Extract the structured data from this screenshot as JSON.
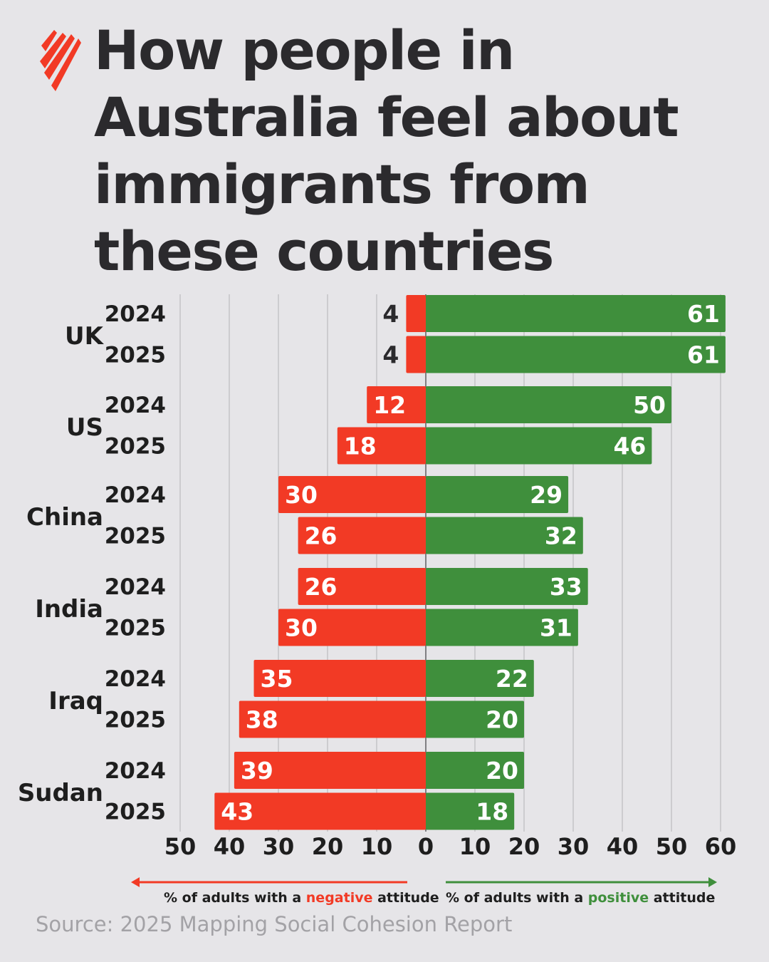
{
  "title": "How people in\nAustralia feel about\nimmigrants from\nthese countries",
  "colors": {
    "negative": "#f23a25",
    "positive": "#3f8f3c",
    "logo": "#f23a25",
    "text": "#1e1e1e"
  },
  "legend": {
    "negative": {
      "prefix": "% of adults with a ",
      "highlight": "negative",
      "suffix": " attitude"
    },
    "positive": {
      "prefix": "% of adults with a ",
      "highlight": "positive",
      "suffix": " attitude"
    }
  },
  "source": "Source: 2025 Mapping Social Cohesion Report",
  "chart_data": {
    "type": "bar",
    "orientation": "horizontal-diverging",
    "xlim": [
      -50,
      60
    ],
    "x_ticks": [
      "50",
      "40",
      "30",
      "20",
      "10",
      "0",
      "10",
      "20",
      "30",
      "40",
      "50",
      "60"
    ],
    "grid": true,
    "groups": [
      {
        "country": "UK",
        "rows": [
          {
            "year": "2024",
            "negative": 4,
            "positive": 61
          },
          {
            "year": "2025",
            "negative": 4,
            "positive": 61
          }
        ]
      },
      {
        "country": "US",
        "rows": [
          {
            "year": "2024",
            "negative": 12,
            "positive": 50
          },
          {
            "year": "2025",
            "negative": 18,
            "positive": 46
          }
        ]
      },
      {
        "country": "China",
        "rows": [
          {
            "year": "2024",
            "negative": 30,
            "positive": 29
          },
          {
            "year": "2025",
            "negative": 26,
            "positive": 32
          }
        ]
      },
      {
        "country": "India",
        "rows": [
          {
            "year": "2024",
            "negative": 26,
            "positive": 33
          },
          {
            "year": "2025",
            "negative": 30,
            "positive": 31
          }
        ]
      },
      {
        "country": "Iraq",
        "rows": [
          {
            "year": "2024",
            "negative": 35,
            "positive": 22
          },
          {
            "year": "2025",
            "negative": 38,
            "positive": 20
          }
        ]
      },
      {
        "country": "Sudan",
        "rows": [
          {
            "year": "2024",
            "negative": 39,
            "positive": 20
          },
          {
            "year": "2025",
            "negative": 43,
            "positive": 18
          }
        ]
      }
    ]
  }
}
